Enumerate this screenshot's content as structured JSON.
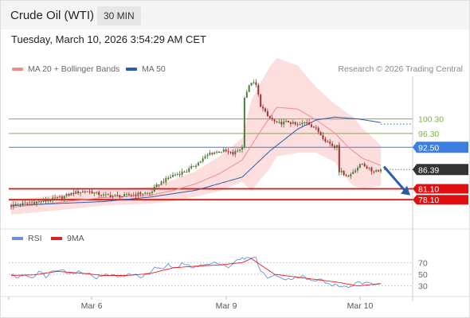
{
  "header": {
    "instrument": "Crude Oil (WTI)",
    "interval": "30 MIN",
    "datetime": "Tuesday, March 10, 2026 3:54:29 AM CET"
  },
  "legend": {
    "bollinger": {
      "label": "MA 20 + Bollinger Bands",
      "color": "#f08b8b"
    },
    "ma50": {
      "label": "MA 50",
      "color": "#2b5ea7"
    },
    "credit": "Research © 2026 Trading Central"
  },
  "rsi_legend": {
    "rsi": {
      "label": "RSI",
      "color": "#6d8fdc"
    },
    "ma9": {
      "label": "9MA",
      "color": "#e02020"
    }
  },
  "colors": {
    "up": "#4b7d3b",
    "down": "#a23030",
    "support": "#e01010",
    "resistance_green": "#7bb33a",
    "pivot": "#3d7ee0",
    "last": "#333333",
    "arrow": "#2b5ea7"
  },
  "chart_data": {
    "type": "candlestick",
    "yrange": [
      70.5,
      112
    ],
    "x_ticks": [
      "Mar 6",
      "Mar 9",
      "Mar 10"
    ],
    "levels": [
      {
        "value": 100.3,
        "label": "100.30",
        "kind": "resistance",
        "color": "#7bb33a"
      },
      {
        "value": 96.3,
        "label": "96.30",
        "kind": "resistance",
        "color": "#7bb33a"
      },
      {
        "value": 92.5,
        "label": "92.50",
        "kind": "pivot",
        "color": "#3d7ee0"
      },
      {
        "value": 86.39,
        "label": "86.39",
        "kind": "last-price",
        "color": "#333333"
      },
      {
        "value": 81.1,
        "label": "81.10",
        "kind": "support",
        "color": "#e01010"
      },
      {
        "value": 78.1,
        "label": "78.10",
        "kind": "support",
        "color": "#e01010"
      }
    ],
    "price_anchors": [
      [
        0,
        76.5
      ],
      [
        8,
        77.3
      ],
      [
        15,
        77.8
      ],
      [
        22,
        78.8
      ],
      [
        27,
        80.0
      ],
      [
        33,
        80.5
      ],
      [
        40,
        79.3
      ],
      [
        48,
        79.1
      ],
      [
        56,
        79.8
      ],
      [
        60,
        79.9
      ],
      [
        64,
        82.5
      ],
      [
        70,
        84.8
      ],
      [
        76,
        86.0
      ],
      [
        82,
        88.7
      ],
      [
        86,
        90.9
      ],
      [
        92,
        91.5
      ],
      [
        96,
        90.7
      ],
      [
        100,
        92.5
      ],
      [
        101,
        106.5
      ],
      [
        104,
        110.5
      ],
      [
        106,
        109.5
      ],
      [
        108,
        104.0
      ],
      [
        111,
        101.0
      ],
      [
        115,
        99.0
      ],
      [
        120,
        99.5
      ],
      [
        124,
        98.5
      ],
      [
        128,
        99.5
      ],
      [
        132,
        97.5
      ],
      [
        136,
        94.5
      ],
      [
        140,
        92.5
      ],
      [
        141,
        93.5
      ],
      [
        142,
        86.0
      ],
      [
        146,
        84.5
      ],
      [
        149,
        86.5
      ],
      [
        152,
        88.0
      ],
      [
        156,
        86.0
      ],
      [
        158,
        86.2
      ],
      [
        160,
        86.4
      ]
    ],
    "ma20_anchors": [
      [
        0,
        76.0
      ],
      [
        20,
        77.3
      ],
      [
        40,
        78.7
      ],
      [
        60,
        79.3
      ],
      [
        70,
        80.6
      ],
      [
        80,
        82.5
      ],
      [
        90,
        85.2
      ],
      [
        100,
        89.0
      ],
      [
        108,
        97.0
      ],
      [
        115,
        103.5
      ],
      [
        124,
        103.0
      ],
      [
        132,
        100.0
      ],
      [
        140,
        96.5
      ],
      [
        146,
        92.5
      ],
      [
        152,
        89.5
      ],
      [
        160,
        87.5
      ]
    ],
    "bb_width_anchors": [
      [
        0,
        2.0
      ],
      [
        60,
        2.3
      ],
      [
        80,
        3.5
      ],
      [
        100,
        6.0
      ],
      [
        104,
        12.5
      ],
      [
        112,
        14.0
      ],
      [
        124,
        12.0
      ],
      [
        132,
        9.0
      ],
      [
        140,
        8.0
      ],
      [
        148,
        9.5
      ],
      [
        156,
        7.0
      ],
      [
        160,
        5.5
      ]
    ],
    "ma50_anchors": [
      [
        0,
        76.5
      ],
      [
        40,
        77.6
      ],
      [
        60,
        78.8
      ],
      [
        80,
        80.7
      ],
      [
        100,
        84.3
      ],
      [
        112,
        91.5
      ],
      [
        124,
        97.5
      ],
      [
        132,
        100.0
      ],
      [
        140,
        100.8
      ],
      [
        150,
        100.3
      ],
      [
        160,
        99.3
      ]
    ],
    "rsi": {
      "range": [
        20,
        80
      ],
      "levels": [
        70,
        50,
        30
      ],
      "rsi_anchors": [
        [
          0,
          50
        ],
        [
          3,
          44
        ],
        [
          6,
          50
        ],
        [
          9,
          44
        ],
        [
          12,
          55
        ],
        [
          15,
          46
        ],
        [
          18,
          56
        ],
        [
          22,
          60
        ],
        [
          25,
          50
        ],
        [
          29,
          55
        ],
        [
          33,
          52
        ],
        [
          37,
          44
        ],
        [
          42,
          50
        ],
        [
          46,
          46
        ],
        [
          52,
          50
        ],
        [
          56,
          46
        ],
        [
          60,
          52
        ],
        [
          62,
          62
        ],
        [
          65,
          58
        ],
        [
          68,
          66
        ],
        [
          71,
          60
        ],
        [
          74,
          68
        ],
        [
          78,
          63
        ],
        [
          84,
          66
        ],
        [
          90,
          70
        ],
        [
          94,
          62
        ],
        [
          98,
          74
        ],
        [
          101,
          78
        ],
        [
          104,
          80
        ],
        [
          106,
          79
        ],
        [
          108,
          55
        ],
        [
          111,
          45
        ],
        [
          114,
          47
        ],
        [
          120,
          42
        ],
        [
          126,
          47
        ],
        [
          130,
          38
        ],
        [
          134,
          41
        ],
        [
          138,
          32
        ],
        [
          142,
          30
        ],
        [
          146,
          28
        ],
        [
          150,
          35
        ],
        [
          154,
          34
        ],
        [
          158,
          33
        ],
        [
          160,
          37
        ]
      ],
      "ma9_anchors": [
        [
          0,
          48
        ],
        [
          10,
          49
        ],
        [
          20,
          55
        ],
        [
          30,
          52
        ],
        [
          40,
          48
        ],
        [
          50,
          48
        ],
        [
          60,
          51
        ],
        [
          70,
          61
        ],
        [
          80,
          64
        ],
        [
          90,
          66
        ],
        [
          100,
          70
        ],
        [
          104,
          77
        ],
        [
          108,
          66
        ],
        [
          114,
          50
        ],
        [
          124,
          45
        ],
        [
          134,
          40
        ],
        [
          142,
          36
        ],
        [
          150,
          30
        ],
        [
          160,
          34
        ]
      ]
    }
  }
}
